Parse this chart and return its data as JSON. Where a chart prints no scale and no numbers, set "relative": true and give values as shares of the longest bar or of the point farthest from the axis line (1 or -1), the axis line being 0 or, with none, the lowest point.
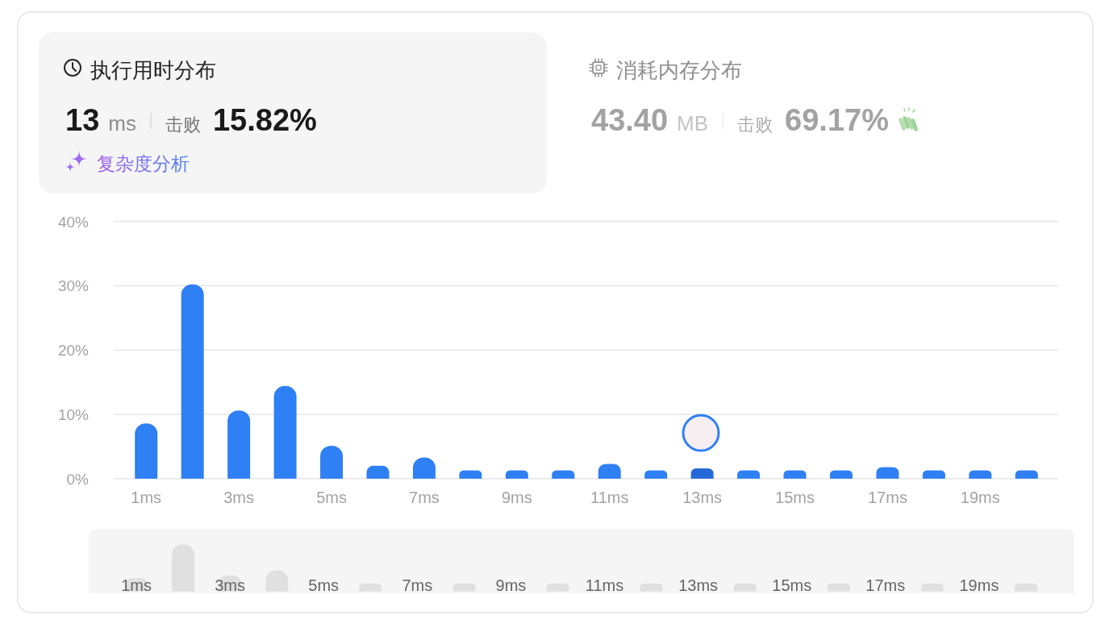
{
  "chart_data": [
    {
      "type": "other",
      "title": "执行用时分布",
      "annotations": [
        "13",
        "ms",
        "击败",
        "15.82%",
        "复杂度分析"
      ]
    },
    {
      "type": "other",
      "title": "消耗内存分布",
      "annotations": [
        "43.40",
        "MB",
        "击败",
        "69.17%"
      ]
    },
    {
      "type": "bar",
      "categories": [
        "1ms",
        null,
        "3ms",
        null,
        "5ms",
        null,
        "7ms",
        null,
        "9ms",
        null,
        "11ms",
        null,
        "13ms",
        null,
        "15ms",
        null,
        "17ms",
        null,
        "19ms",
        null
      ],
      "values": [
        8.6,
        30.2,
        10.6,
        14.4,
        5.1,
        2.0,
        3.3,
        1.3,
        1.3,
        1.3,
        2.3,
        1.3,
        1.6,
        1.3,
        1.3,
        1.3,
        1.8,
        1.3,
        1.3,
        1.3
      ],
      "colors": [
        "#2f7ff5",
        "#2f7ff5",
        "#2f7ff5",
        "#2f7ff5",
        "#2f7ff5",
        "#2f7ff5",
        "#2f7ff5",
        "#2f7ff5",
        "#2f7ff5",
        "#2f7ff5",
        "#2f7ff5",
        "#2f7ff5",
        "#2468d8",
        "#2f7ff5",
        "#2f7ff5",
        "#2f7ff5",
        "#2f7ff5",
        "#2f7ff5",
        "#2f7ff5",
        "#2f7ff5"
      ],
      "ylim": [
        0,
        40
      ],
      "yticks": [
        {
          "value": 0,
          "label": "0%"
        },
        {
          "value": 10,
          "label": "10%"
        },
        {
          "value": 20,
          "label": "20%"
        },
        {
          "value": 30,
          "label": "30%"
        },
        {
          "value": 40,
          "label": "40%"
        }
      ],
      "grid": "y"
    },
    {
      "type": "bar",
      "relative": true,
      "categories": [
        "1ms",
        null,
        "3ms",
        null,
        "5ms",
        null,
        "7ms",
        null,
        "9ms",
        null,
        "11ms",
        null,
        "13ms",
        null,
        "15ms",
        null,
        "17ms",
        null,
        "19ms",
        null
      ],
      "values": [
        0.28,
        1,
        0.34,
        0.45,
        null,
        0.17,
        null,
        0.17,
        null,
        0.17,
        null,
        0.17,
        null,
        0.17,
        null,
        0.17,
        null,
        0.17,
        null,
        0.17
      ],
      "color": "#e0e0e0"
    }
  ]
}
